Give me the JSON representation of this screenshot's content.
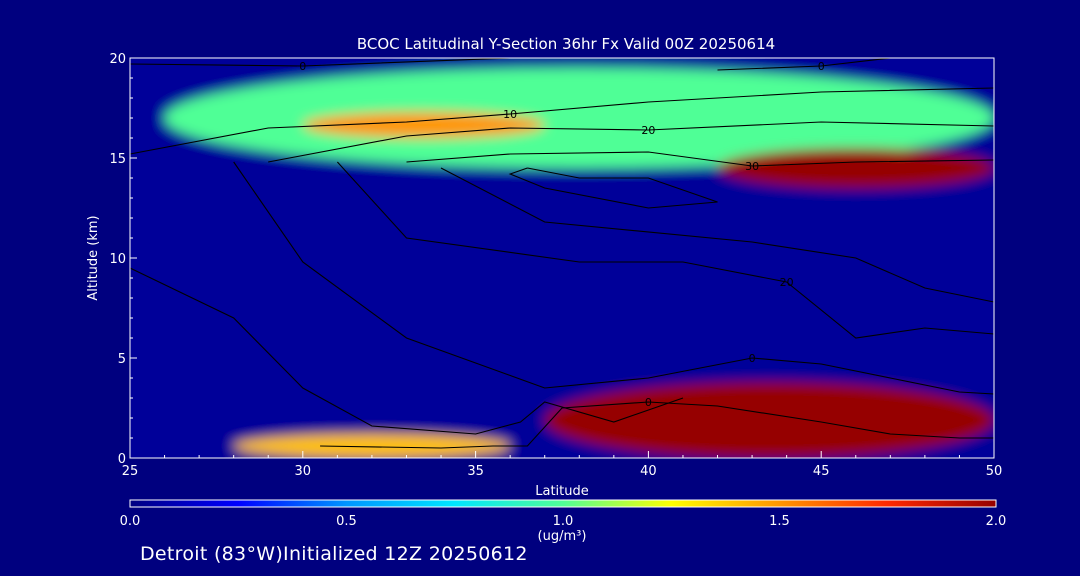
{
  "chart_data": {
    "type": "heatmap",
    "title": "BCOC Latitudinal Y-Section 36hr  Fx Valid 00Z 20250614",
    "xlabel": "Latitude",
    "ylabel": "Altitude (km)",
    "xlim": [
      25,
      50
    ],
    "ylim": [
      0,
      20
    ],
    "x_ticks": [
      "25",
      "30",
      "35",
      "40",
      "45",
      "50"
    ],
    "y_ticks": [
      "0",
      "5",
      "10",
      "15",
      "20"
    ],
    "colorbar": {
      "min": 0.0,
      "max": 2.0,
      "ticks": [
        "0.0",
        "0.5",
        "1.0",
        "1.5",
        "2.0"
      ],
      "unit": "(ug/m³)",
      "colors": [
        "#000080",
        "#0000ff",
        "#0096ff",
        "#00e6ff",
        "#50ff96",
        "#ffff00",
        "#ff9600",
        "#ff2800",
        "#960000"
      ]
    },
    "shaded_features": [
      {
        "desc": "upper layer",
        "x": [
          26,
          50
        ],
        "y": [
          14.5,
          19.5
        ],
        "value": 1.0
      },
      {
        "desc": "band",
        "x": [
          30,
          37
        ],
        "y": [
          16,
          17.3
        ],
        "value": 1.5
      },
      {
        "desc": "core",
        "x": [
          42,
          50
        ],
        "y": [
          13.5,
          15.5
        ],
        "value": 2.0
      },
      {
        "desc": "surface plume",
        "x": [
          37,
          50
        ],
        "y": [
          0,
          3.8
        ],
        "value": 2.0
      },
      {
        "desc": "surface strip",
        "x": [
          28,
          36
        ],
        "y": [
          0,
          1.2
        ],
        "value": 1.4
      }
    ],
    "contours": [
      {
        "label": "0",
        "points": [
          [
            30.5,
            0.6
          ],
          [
            34,
            0.5
          ],
          [
            35.5,
            0.6
          ],
          [
            36.5,
            0.6
          ],
          [
            37.5,
            2.5
          ],
          [
            40,
            2.8
          ],
          [
            42,
            2.6
          ],
          [
            45,
            1.8
          ],
          [
            47,
            1.2
          ],
          [
            49,
            1.0
          ],
          [
            50,
            1.0
          ]
        ]
      },
      {
        "label": "0",
        "points": [
          [
            42,
            19.4
          ],
          [
            45,
            19.6
          ],
          [
            47,
            20
          ]
        ]
      },
      {
        "label": "0",
        "points": [
          [
            25,
            19.7
          ],
          [
            30,
            19.6
          ],
          [
            36,
            20
          ]
        ]
      },
      {
        "label": "10",
        "points": [
          [
            25,
            15.2
          ],
          [
            29,
            16.5
          ],
          [
            33,
            16.8
          ],
          [
            36,
            17.2
          ],
          [
            40,
            17.8
          ],
          [
            45,
            18.3
          ],
          [
            50,
            18.5
          ]
        ]
      },
      {
        "label": "20",
        "points": [
          [
            29,
            14.8
          ],
          [
            33,
            16.1
          ],
          [
            36,
            16.5
          ],
          [
            40,
            16.4
          ],
          [
            45,
            16.8
          ],
          [
            50,
            16.6
          ]
        ]
      },
      {
        "label": "30",
        "points": [
          [
            33,
            14.8
          ],
          [
            36,
            15.2
          ],
          [
            40,
            15.3
          ],
          [
            43,
            14.6
          ],
          [
            46,
            14.8
          ],
          [
            50,
            14.9
          ]
        ]
      },
      {
        "label": "",
        "points": [
          [
            36.5,
            14.5
          ],
          [
            38,
            14.0
          ],
          [
            40,
            14.0
          ],
          [
            42,
            12.8
          ],
          [
            40,
            12.5
          ],
          [
            37,
            13.5
          ],
          [
            36,
            14.2
          ],
          [
            36.5,
            14.5
          ]
        ]
      },
      {
        "label": "",
        "points": [
          [
            34,
            14.5
          ],
          [
            37,
            11.8
          ],
          [
            43,
            10.8
          ],
          [
            46,
            10.0
          ],
          [
            48,
            8.5
          ],
          [
            50,
            7.8
          ]
        ]
      },
      {
        "label": "20",
        "points": [
          [
            31,
            14.8
          ],
          [
            33,
            11.0
          ],
          [
            38,
            9.8
          ],
          [
            41,
            9.8
          ],
          [
            44,
            8.8
          ],
          [
            46,
            6.0
          ],
          [
            48,
            6.5
          ],
          [
            50,
            6.2
          ]
        ]
      },
      {
        "label": "0",
        "points": [
          [
            28,
            14.8
          ],
          [
            30,
            9.8
          ],
          [
            33,
            6.0
          ],
          [
            37,
            3.5
          ],
          [
            40,
            4.0
          ],
          [
            43,
            5.0
          ],
          [
            45,
            4.7
          ],
          [
            47,
            4.0
          ],
          [
            49,
            3.3
          ],
          [
            50,
            3.2
          ]
        ]
      },
      {
        "label": "",
        "points": [
          [
            25,
            9.5
          ],
          [
            28,
            7.0
          ],
          [
            30,
            3.5
          ],
          [
            32,
            1.6
          ],
          [
            35,
            1.2
          ],
          [
            36.3,
            1.8
          ],
          [
            37,
            2.8
          ],
          [
            39,
            1.8
          ],
          [
            41,
            3.0
          ]
        ]
      }
    ]
  },
  "footer": "Detroit (83°W)Initialized 12Z 20250612"
}
